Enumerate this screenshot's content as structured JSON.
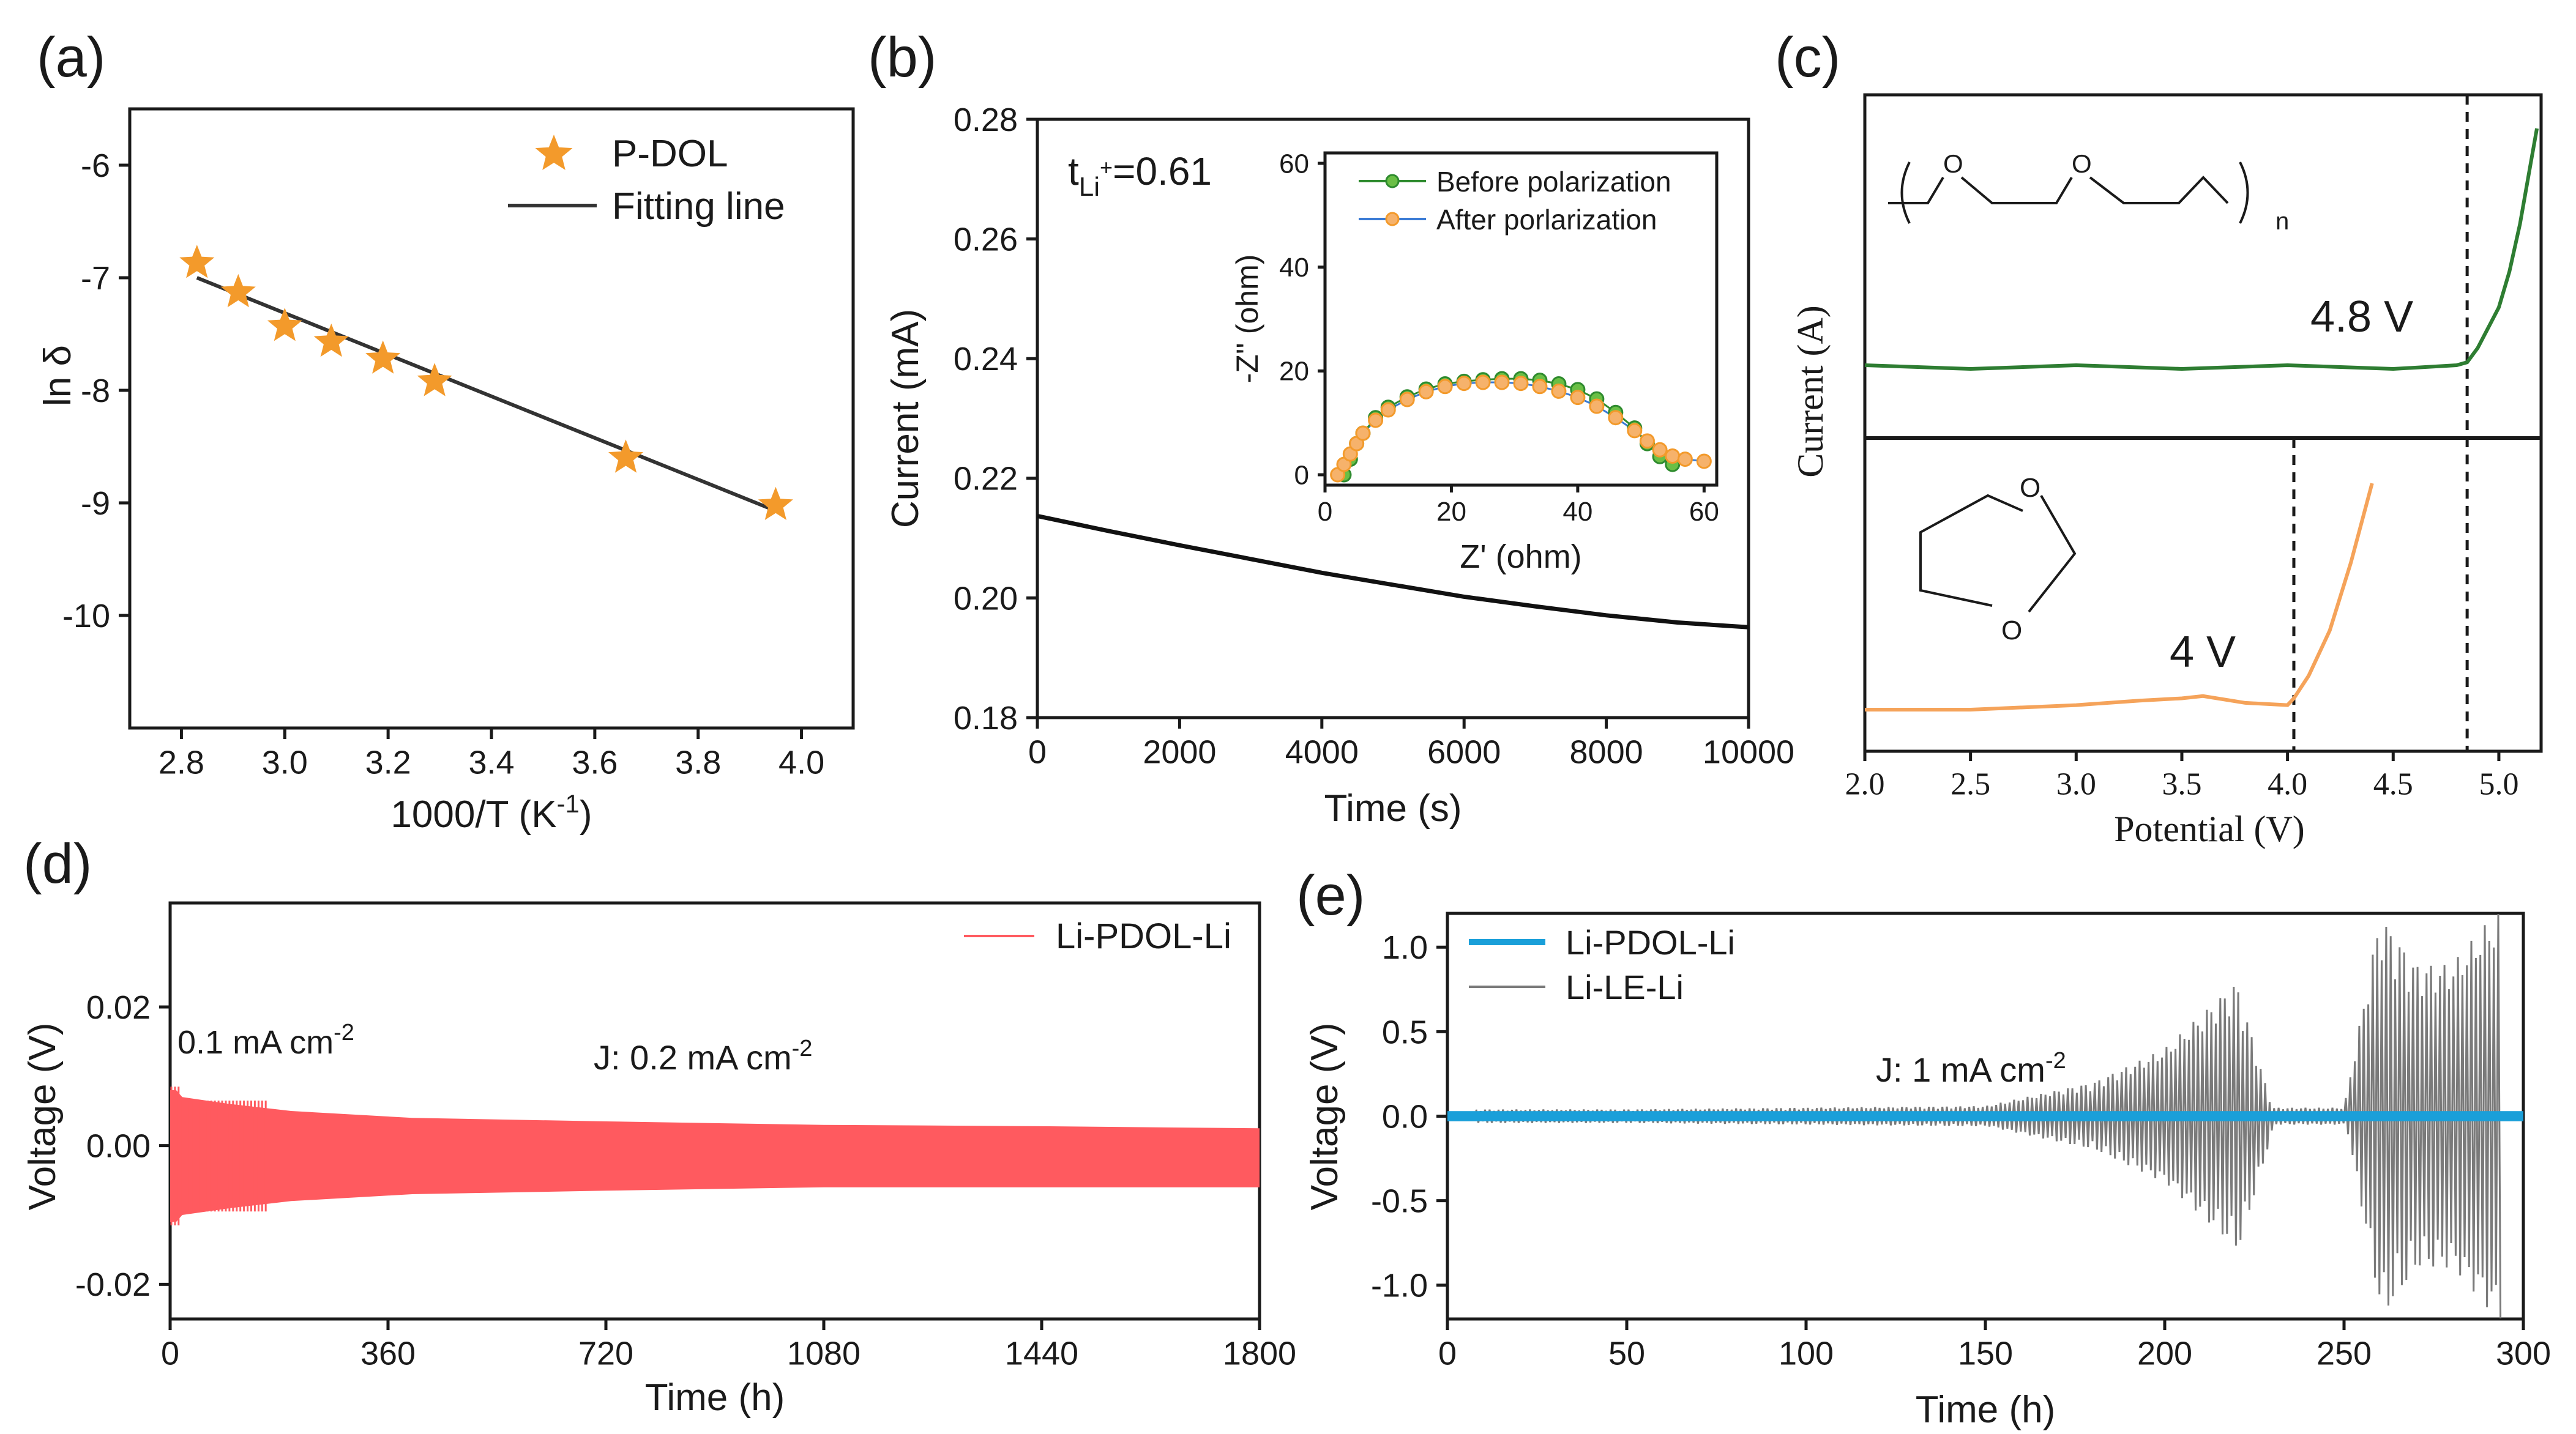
{
  "chart_data": [
    {
      "panel": "a",
      "panel_label": "(a)",
      "type": "scatter",
      "xlabel": "1000/T (K",
      "xlabel_sup": "-1",
      "xlabel_end": ")",
      "ylabel": "ln δ",
      "xlim": [
        2.7,
        4.1
      ],
      "ylim": [
        -11.0,
        -5.5
      ],
      "xticks": [
        "2.8",
        "3.0",
        "3.2",
        "3.4",
        "3.6",
        "3.8",
        "4.0"
      ],
      "yticks": [
        "-6",
        "-7",
        "-8",
        "-9",
        "-10"
      ],
      "legend": [
        "P-DOL",
        "Fitting line"
      ],
      "series": [
        {
          "name": "P-DOL",
          "x": [
            2.83,
            2.91,
            3.0,
            3.09,
            3.19,
            3.29,
            3.66,
            3.95
          ],
          "y": [
            -6.87,
            -7.13,
            -7.43,
            -7.57,
            -7.72,
            -7.92,
            -8.6,
            -9.02
          ]
        },
        {
          "name": "Fitting line",
          "x": [
            2.83,
            3.95
          ],
          "y": [
            -7.0,
            -9.07
          ]
        }
      ],
      "colors": {
        "marker": "#f39a2b",
        "line": "#333333"
      }
    },
    {
      "panel": "b",
      "panel_label": "(b)",
      "type": "line",
      "xlabel": "Time (s)",
      "ylabel": "Current (mA)",
      "xlim": [
        0,
        10000
      ],
      "ylim": [
        0.18,
        0.28
      ],
      "xticks": [
        "0",
        "2000",
        "4000",
        "6000",
        "8000",
        "10000"
      ],
      "yticks": [
        "0.18",
        "0.20",
        "0.22",
        "0.24",
        "0.26",
        "0.28"
      ],
      "annotation": {
        "base": "t",
        "sub": "Li",
        "sup": "+",
        "value": "=0.61"
      },
      "series": [
        {
          "name": "Current",
          "x": [
            0,
            1000,
            2000,
            3000,
            4000,
            5000,
            6000,
            7000,
            8000,
            9000,
            10000
          ],
          "y": [
            0.2137,
            0.2112,
            0.2088,
            0.2065,
            0.2042,
            0.2022,
            0.2002,
            0.1986,
            0.1971,
            0.1959,
            0.1951
          ]
        }
      ],
      "inset": {
        "type": "scatter",
        "xlabel": "Z' (ohm)",
        "ylabel": "-Z'' (ohm)",
        "xlim": [
          0,
          62
        ],
        "ylim": [
          -2,
          62
        ],
        "xticks": [
          "0",
          "20",
          "40",
          "60"
        ],
        "yticks": [
          "0",
          "20",
          "40",
          "60"
        ],
        "legend": [
          "Before polarization",
          "After porlarization"
        ],
        "series": [
          {
            "name": "Before polarization",
            "x": [
              3,
              4,
              5,
              6,
              8,
              10,
              13,
              16,
              19,
              22,
              25,
              28,
              31,
              34,
              37,
              40,
              43,
              46,
              49,
              51,
              53,
              55
            ],
            "y": [
              0,
              3,
              6,
              8,
              11,
              13,
              15,
              16.5,
              17.5,
              18,
              18.3,
              18.5,
              18.5,
              18.2,
              17.5,
              16.4,
              14.6,
              12,
              9,
              6,
              3.5,
              2
            ]
          },
          {
            "name": "After porlarization",
            "x": [
              2,
              3,
              4,
              5,
              6,
              8,
              10,
              13,
              16,
              19,
              22,
              25,
              28,
              31,
              34,
              37,
              40,
              43,
              46,
              49,
              51,
              53,
              55,
              57,
              60
            ],
            "y": [
              0,
              2,
              4,
              6,
              8,
              10.5,
              12.5,
              14.5,
              16,
              17,
              17.6,
              17.8,
              17.8,
              17.6,
              17,
              16.1,
              14.9,
              13.2,
              11,
              8.5,
              6.5,
              4.8,
              3.6,
              3,
              2.6
            ]
          }
        ],
        "colors": {
          "before": "#2e8b2e",
          "after": "#f39a2b",
          "after_line": "#3a7bd5"
        }
      }
    },
    {
      "panel": "c",
      "panel_label": "(c)",
      "type": "line",
      "xlabel": "Potential (V)",
      "ylabel": "Current (A)",
      "xlim": [
        2.0,
        5.2
      ],
      "xticks": [
        "2.0",
        "2.5",
        "3.0",
        "3.5",
        "4.0",
        "4.5",
        "5.0"
      ],
      "annotations": [
        "4.8 V",
        "4 V"
      ],
      "molecule_labels": {
        "oxygen": "O",
        "subscript": "n"
      },
      "series": [
        {
          "name": "Polymer (top)",
          "x": [
            2.0,
            2.5,
            3.0,
            3.5,
            4.0,
            4.5,
            4.8,
            4.85,
            4.9,
            5.0,
            5.05,
            5.1,
            5.15,
            5.18
          ],
          "y": [
            0.0,
            0.0,
            0.0,
            0.0,
            0.0,
            0.0,
            0.0,
            0.02,
            0.08,
            0.25,
            0.4,
            0.6,
            0.85,
            1.0
          ]
        },
        {
          "name": "DOL (bottom)",
          "x": [
            2.0,
            2.5,
            3.0,
            3.3,
            3.5,
            3.6,
            3.8,
            4.0,
            4.03,
            4.1,
            4.2,
            4.3,
            4.4
          ],
          "y": [
            0.0,
            0.0,
            0.02,
            0.04,
            0.05,
            0.06,
            0.03,
            0.02,
            0.05,
            0.15,
            0.35,
            0.65,
            1.0
          ]
        }
      ],
      "onset_potentials": [
        4.85,
        4.03
      ],
      "colors": {
        "top": "#2e7d32",
        "bottom": "#f5a35a"
      }
    },
    {
      "panel": "d",
      "panel_label": "(d)",
      "type": "line",
      "xlabel": "Time (h)",
      "ylabel": "Voltage (V)",
      "xlim": [
        0,
        1800
      ],
      "ylim": [
        -0.025,
        0.035
      ],
      "xticks": [
        "0",
        "360",
        "720",
        "1080",
        "1440",
        "1800"
      ],
      "yticks": [
        "0.02",
        "0.00",
        "-0.02"
      ],
      "legend": [
        "Li-PDOL-Li"
      ],
      "annotations": [
        {
          "text": "0.1 mA cm",
          "sup": "-2"
        },
        {
          "text": "J: 0.2 mA cm",
          "sup": "-2"
        }
      ],
      "envelope": {
        "x": [
          0,
          10,
          20,
          100,
          200,
          400,
          720,
          1080,
          1440,
          1800
        ],
        "upper": [
          0.008,
          0.008,
          0.007,
          0.006,
          0.005,
          0.004,
          0.0035,
          0.003,
          0.0028,
          0.0025
        ],
        "lower": [
          -0.011,
          -0.011,
          -0.01,
          -0.009,
          -0.008,
          -0.007,
          -0.0065,
          -0.006,
          -0.006,
          -0.006
        ]
      },
      "colors": {
        "series": "#ff5a5f"
      }
    },
    {
      "panel": "e",
      "panel_label": "(e)",
      "type": "line",
      "xlabel": "Time (h)",
      "ylabel": "Voltage (V)",
      "xlim": [
        0,
        300
      ],
      "ylim": [
        -1.2,
        1.2
      ],
      "xticks": [
        "0",
        "50",
        "100",
        "150",
        "200",
        "250",
        "300"
      ],
      "yticks": [
        "1.0",
        "0.5",
        "0.0",
        "-0.5",
        "-1.0"
      ],
      "legend": [
        "Li-PDOL-Li",
        "Li-LE-Li"
      ],
      "annotation": {
        "text": "J: 1 mA cm",
        "sup": "-2"
      },
      "series": [
        {
          "name": "Li-PDOL-Li",
          "x": [
            0,
            300
          ],
          "y_amplitude": [
            0.03,
            0.03
          ]
        },
        {
          "name": "Li-LE-Li",
          "x": [
            8,
            50,
            100,
            150,
            180,
            200,
            210,
            220,
            230,
            250,
            260,
            270,
            280,
            290,
            293
          ],
          "y_amplitude": [
            0.04,
            0.04,
            0.05,
            0.06,
            0.2,
            0.4,
            0.6,
            0.8,
            0.05,
            0.05,
            1.2,
            0.9,
            0.9,
            1.15,
            1.2
          ]
        }
      ],
      "colors": {
        "pdol": "#1a9fd9",
        "le": "#7a7a7a"
      }
    }
  ]
}
